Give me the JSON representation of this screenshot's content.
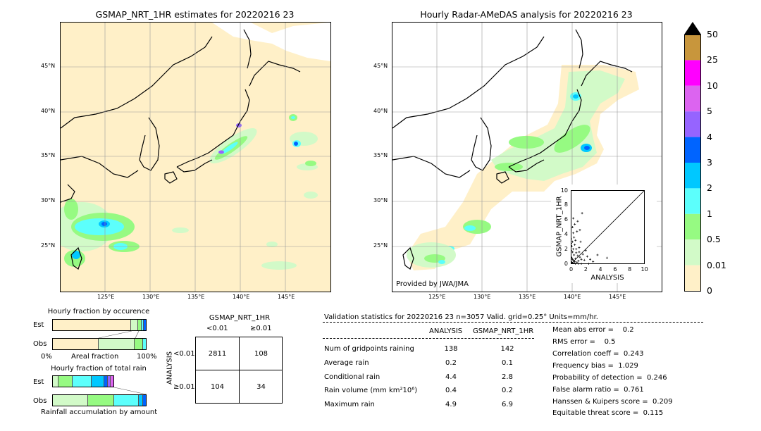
{
  "left_map": {
    "title": "GSMAP_NRT_1HR estimates for 20220216 23",
    "lat_labels": [
      "45°N",
      "40°N",
      "35°N",
      "30°N",
      "25°N"
    ],
    "lon_labels": [
      "125°E",
      "130°E",
      "135°E",
      "140°E",
      "145°E"
    ]
  },
  "right_map": {
    "title": "Hourly Radar-AMeDAS analysis for 20220216 23",
    "lat_labels": [
      "45°N",
      "40°N",
      "35°N",
      "30°N",
      "25°N"
    ],
    "lon_labels": [
      "125°E",
      "130°E",
      "135°E",
      "140°E",
      "145°E"
    ],
    "credit": "Provided by JWA/JMA"
  },
  "colorbar": {
    "labels": [
      "50",
      "25",
      "10",
      "5",
      "4",
      "3",
      "2",
      "1",
      "0.5",
      "0.01",
      "0"
    ],
    "colors": [
      "#c8963c",
      "#ff00ff",
      "#dc64f0",
      "#9664ff",
      "#0064ff",
      "#00c8ff",
      "#5cfffc",
      "#96fa82",
      "#d2fac8",
      "#fff0c8"
    ]
  },
  "scatter": {
    "xlabel": "ANALYSIS",
    "ylabel": "GSMAP_NRT_1HR",
    "ticks": [
      "0",
      "2",
      "4",
      "6",
      "8",
      "10"
    ]
  },
  "fraction_occurrence": {
    "title": "Hourly fraction by occurence",
    "est_label": "Est",
    "obs_label": "Obs",
    "axis_left": "0%",
    "axis_mid": "Areal fraction",
    "axis_right": "100%"
  },
  "fraction_total": {
    "title": "Hourly fraction of total rain",
    "est_label": "Est",
    "obs_label": "Obs",
    "axis_mid": "Rainfall accumulation by amount"
  },
  "contingency": {
    "title": "GSMAP_NRT_1HR",
    "col_lt": "<0.01",
    "col_ge": "≥0.01",
    "side_label": "ANALYSIS",
    "row_lt": "<0.01",
    "row_ge": "≥0.01",
    "a": "2811",
    "b": "108",
    "c": "104",
    "d": "34"
  },
  "validation": {
    "header": "Validation statistics for 20220216 23  n=3057 Valid. grid=0.25° Units=mm/hr.",
    "col_analysis": "ANALYSIS",
    "col_gsmap": "GSMAP_NRT_1HR",
    "rows": [
      {
        "label": "Num of gridpoints raining",
        "analysis": "138",
        "gsmap": "142"
      },
      {
        "label": "Average rain",
        "analysis": "0.2",
        "gsmap": "0.1"
      },
      {
        "label": "Conditional rain",
        "analysis": "4.4",
        "gsmap": "2.8"
      },
      {
        "label": "Rain volume (mm km²10⁶)",
        "analysis": "0.4",
        "gsmap": "0.2"
      },
      {
        "label": "Maximum rain",
        "analysis": "4.9",
        "gsmap": "6.9"
      }
    ],
    "scores": [
      "Mean abs error =    0.2",
      "RMS error =    0.5",
      "Correlation coeff =  0.243",
      "Frequency bias =  1.029",
      "Probability of detection =  0.246",
      "False alarm ratio =  0.761",
      "Hanssen & Kuipers score =  0.209",
      "Equitable threat score =  0.115"
    ]
  },
  "chart_data": {
    "type": "scatter",
    "title": "",
    "xlabel": "ANALYSIS",
    "ylabel": "GSMAP_NRT_1HR",
    "xlim": [
      0,
      10
    ],
    "ylim": [
      0,
      10
    ],
    "points": [
      [
        0.1,
        0.2
      ],
      [
        0.2,
        0.1
      ],
      [
        0.3,
        0.5
      ],
      [
        0.1,
        0.8
      ],
      [
        0.5,
        0.3
      ],
      [
        0.4,
        1.2
      ],
      [
        0.2,
        1.6
      ],
      [
        0.6,
        0.7
      ],
      [
        0.8,
        0.2
      ],
      [
        0.3,
        2.0
      ],
      [
        0.1,
        2.4
      ],
      [
        0.7,
        1.5
      ],
      [
        1.0,
        0.4
      ],
      [
        0.2,
        3.0
      ],
      [
        0.5,
        2.6
      ],
      [
        0.9,
        1.1
      ],
      [
        1.2,
        0.9
      ],
      [
        0.4,
        3.6
      ],
      [
        0.3,
        4.2
      ],
      [
        1.4,
        0.6
      ],
      [
        0.6,
        3.2
      ],
      [
        0.2,
        5.0
      ],
      [
        0.8,
        4.4
      ],
      [
        1.1,
        2.2
      ],
      [
        1.6,
        1.3
      ],
      [
        0.5,
        5.4
      ],
      [
        1.3,
        3.0
      ],
      [
        0.9,
        5.8
      ],
      [
        1.2,
        4.6
      ],
      [
        1.5,
        6.9
      ],
      [
        0.3,
        6.2
      ],
      [
        2.0,
        1.8
      ],
      [
        1.8,
        0.5
      ],
      [
        2.2,
        1.0
      ],
      [
        2.6,
        0.6
      ],
      [
        0.4,
        0.1
      ],
      [
        0.6,
        0.0
      ],
      [
        1.0,
        0.0
      ],
      [
        1.4,
        0.0
      ],
      [
        2.4,
        0.0
      ],
      [
        3.0,
        0.3
      ],
      [
        0.0,
        0.9
      ],
      [
        0.0,
        1.8
      ],
      [
        0.0,
        2.8
      ],
      [
        0.0,
        3.4
      ],
      [
        0.7,
        2.0
      ],
      [
        1.1,
        1.6
      ],
      [
        0.2,
        0.6
      ],
      [
        4.9,
        0.8
      ],
      [
        3.6,
        1.2
      ]
    ]
  }
}
